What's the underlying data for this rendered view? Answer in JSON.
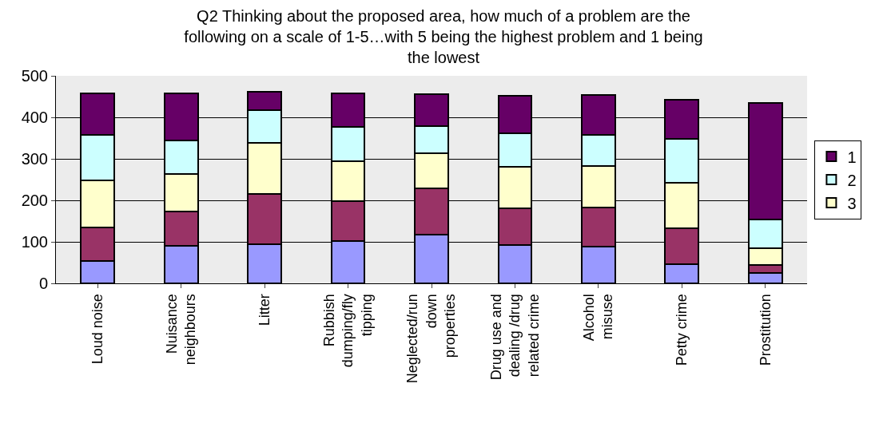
{
  "chart_data": {
    "type": "bar",
    "stacked": true,
    "title": "Q2 Thinking about the proposed area, how much of a problem are the following on a scale of 1-5…with 5 being the highest problem and 1 being the lowest",
    "categories": [
      "Loud noise",
      "Nuisance neighbours",
      "Litter",
      "Rubbish dumping/fly tipping",
      "Neglected/run down properties",
      "Drug use and dealing /drug related crime",
      "Alcohol misuse",
      "Petty crime",
      "Prostitution"
    ],
    "series": [
      {
        "color": "#9999ff",
        "values": [
          53,
          90,
          95,
          101,
          117,
          93,
          89,
          47,
          25
        ]
      },
      {
        "color": "#993366",
        "values": [
          82,
          83,
          120,
          98,
          112,
          87,
          93,
          86,
          20
        ]
      },
      {
        "name": "3",
        "color": "#ffffcc",
        "values": [
          113,
          90,
          123,
          95,
          84,
          100,
          100,
          109,
          39
        ]
      },
      {
        "name": "2",
        "color": "#ccffff",
        "values": [
          109,
          81,
          79,
          83,
          65,
          81,
          76,
          106,
          70
        ]
      },
      {
        "name": "1",
        "color": "#660066",
        "values": [
          100,
          113,
          44,
          80,
          78,
          91,
          95,
          94,
          281
        ]
      }
    ],
    "ylim": [
      0,
      500
    ],
    "yticks": [
      0,
      100,
      200,
      300,
      400,
      500
    ],
    "grid": "y",
    "legend": "right"
  }
}
